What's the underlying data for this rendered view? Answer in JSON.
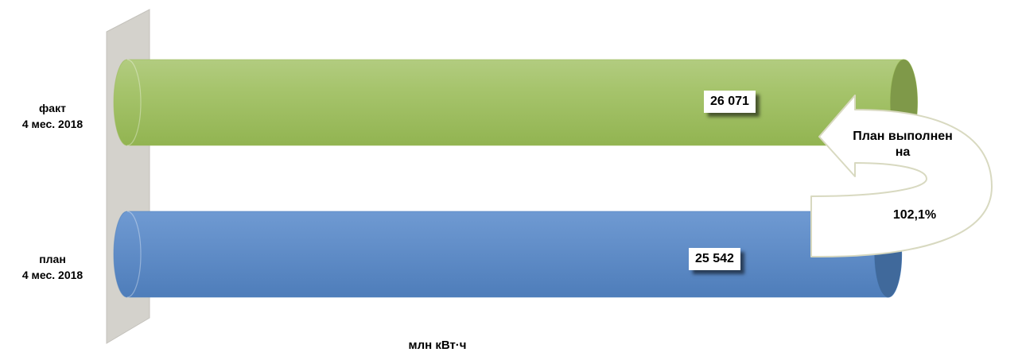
{
  "chart_data": {
    "type": "bar",
    "orientation": "horizontal",
    "categories": [
      {
        "line1": "факт",
        "line2": "4 мес. 2018"
      },
      {
        "line1": "план",
        "line2": "4 мес. 2018"
      }
    ],
    "values": [
      26071,
      25542
    ],
    "value_labels": [
      "26 071",
      "25 542"
    ],
    "colors": [
      "#9BBB59",
      "#4F81BD"
    ],
    "xlabel": "млн кВт·ч",
    "grid": false,
    "legend": "none"
  },
  "annotation": {
    "line1": "План выполнен",
    "line2": "на",
    "percent": "102,1%"
  }
}
